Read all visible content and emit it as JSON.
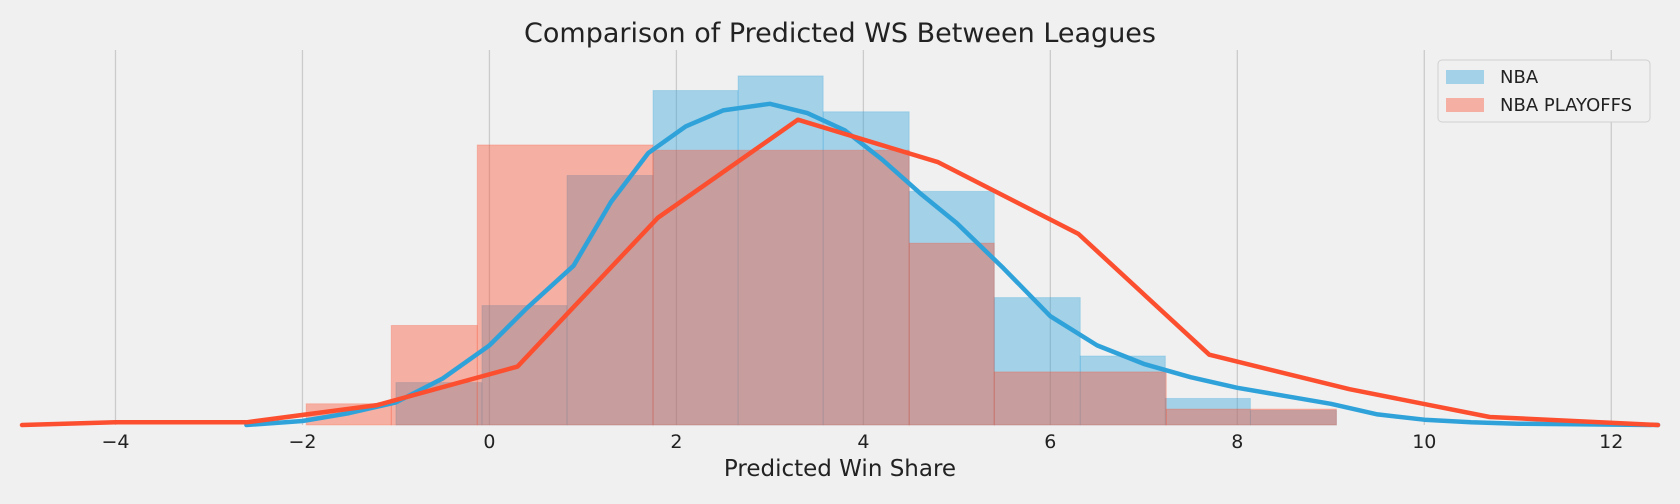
{
  "chart_data": {
    "type": "histogram-density",
    "title": "Comparison of Predicted WS Between Leagues",
    "xlabel": "Predicted Win Share",
    "ylabel": "",
    "xlim": [
      -5,
      12.5
    ],
    "ylim": [
      0,
      0.275
    ],
    "xticks": [
      -4,
      -2,
      0,
      2,
      4,
      6,
      8,
      10,
      12
    ],
    "xtick_labels": [
      "−4",
      "−2",
      "0",
      "2",
      "4",
      "6",
      "8",
      "10",
      "12"
    ],
    "grid": "vertical",
    "legend_position": "top-right",
    "series": [
      {
        "name": "NBA",
        "color": "#30a2da",
        "hist_edges": [
          -1.0,
          -0.08,
          0.83,
          1.75,
          2.66,
          3.57,
          4.49,
          5.4,
          6.32,
          7.23,
          8.14,
          9.06
        ],
        "hist_heights": [
          0.032,
          0.09,
          0.188,
          0.252,
          0.263,
          0.236,
          0.176,
          0.096,
          0.052,
          0.02,
          0.011
        ],
        "kde_x": [
          -2.6,
          -2.0,
          -1.5,
          -1.0,
          -0.5,
          0.0,
          0.4,
          0.9,
          1.3,
          1.7,
          2.1,
          2.5,
          3.0,
          3.4,
          3.8,
          4.2,
          4.6,
          5.0,
          5.5,
          6.0,
          6.5,
          7.0,
          7.5,
          8.0,
          8.5,
          9.0,
          9.5,
          10.0,
          10.5,
          11.0,
          12.5
        ],
        "kde_y": [
          0.0,
          0.003,
          0.009,
          0.017,
          0.035,
          0.06,
          0.088,
          0.12,
          0.168,
          0.205,
          0.225,
          0.237,
          0.242,
          0.235,
          0.222,
          0.2,
          0.175,
          0.152,
          0.118,
          0.082,
          0.06,
          0.046,
          0.036,
          0.028,
          0.022,
          0.016,
          0.008,
          0.004,
          0.002,
          0.001,
          0.0
        ]
      },
      {
        "name": "NBA PLAYOFFS",
        "color": "#fc4f30",
        "hist_edges": [
          -1.96,
          -1.05,
          -0.13,
          1.75,
          4.49,
          5.4,
          7.24,
          9.06,
          10.9
        ],
        "hist_heights": [
          0.016,
          0.075,
          0.211,
          0.207,
          0.137,
          0.04,
          0.012,
          0.0
        ],
        "kde_x": [
          -5.0,
          -4.0,
          -2.6,
          -1.2,
          0.3,
          1.8,
          3.3,
          4.8,
          6.3,
          7.7,
          9.2,
          10.7,
          12.5
        ],
        "kde_y": [
          0.0,
          0.002,
          0.002,
          0.015,
          0.044,
          0.156,
          0.23,
          0.198,
          0.144,
          0.053,
          0.027,
          0.006,
          0.0
        ]
      }
    ]
  }
}
